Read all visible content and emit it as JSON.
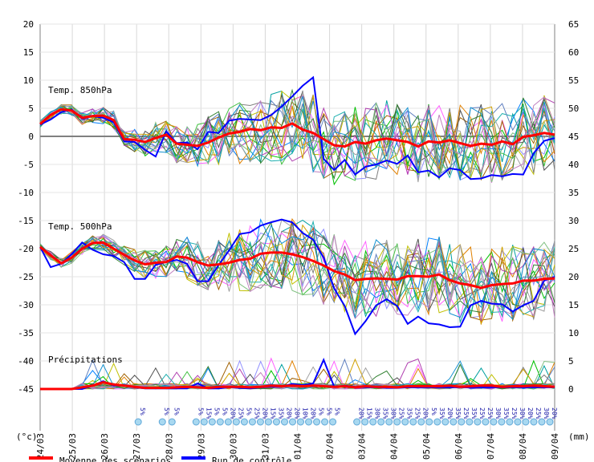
{
  "chart_data": {
    "type": "line",
    "sections": {
      "t850": {
        "label": "Temp. 850hPa"
      },
      "t500": {
        "label": "Temp. 500hPa"
      },
      "precip": {
        "label": "Précipitations"
      }
    },
    "left_axis": {
      "unit": "(°c)",
      "ticks": [
        20,
        15,
        10,
        5,
        0,
        -5,
        -10,
        -15,
        -20,
        -25,
        -30,
        -35,
        -40,
        -45
      ]
    },
    "right_axis": {
      "unit": "(mm)",
      "ticks": [
        65,
        60,
        55,
        50,
        45,
        40,
        35,
        30,
        25,
        20,
        15,
        10,
        5,
        0
      ]
    },
    "x_labels": [
      "24/03",
      "25/03",
      "26/03",
      "27/03",
      "28/03",
      "29/03",
      "30/03",
      "31/03",
      "01/04",
      "02/04",
      "03/04",
      "04/04",
      "05/04",
      "06/04",
      "07/04",
      "08/04",
      "09/04"
    ],
    "snow_probabilities": [
      {
        "day": 3.05,
        "pct": "5%"
      },
      {
        "day": 3.8,
        "pct": "5%"
      },
      {
        "day": 4.1,
        "pct": "5%"
      },
      {
        "day": 4.85,
        "pct": "5%"
      },
      {
        "day": 5.1,
        "pct": "15%"
      },
      {
        "day": 5.35,
        "pct": "5%"
      },
      {
        "day": 5.6,
        "pct": "5%"
      },
      {
        "day": 5.85,
        "pct": "20%"
      },
      {
        "day": 6.1,
        "pct": "25%"
      },
      {
        "day": 6.35,
        "pct": "5%"
      },
      {
        "day": 6.6,
        "pct": "25%"
      },
      {
        "day": 6.85,
        "pct": "20%"
      },
      {
        "day": 7.1,
        "pct": "15%"
      },
      {
        "day": 7.35,
        "pct": "35%"
      },
      {
        "day": 7.6,
        "pct": "20%"
      },
      {
        "day": 7.85,
        "pct": "20%"
      },
      {
        "day": 8.1,
        "pct": "10%"
      },
      {
        "day": 8.35,
        "pct": "20%"
      },
      {
        "day": 8.6,
        "pct": "5%"
      },
      {
        "day": 8.85,
        "pct": "5%"
      },
      {
        "day": 9.1,
        "pct": "5%"
      },
      {
        "day": 9.85,
        "pct": "20%"
      },
      {
        "day": 10.1,
        "pct": "15%"
      },
      {
        "day": 10.35,
        "pct": "30%"
      },
      {
        "day": 10.6,
        "pct": "35%"
      },
      {
        "day": 10.85,
        "pct": "30%"
      },
      {
        "day": 11.1,
        "pct": "25%"
      },
      {
        "day": 11.35,
        "pct": "35%"
      },
      {
        "day": 11.6,
        "pct": "25%"
      },
      {
        "day": 11.85,
        "pct": "20%"
      },
      {
        "day": 12.1,
        "pct": "5%"
      },
      {
        "day": 12.35,
        "pct": "35%"
      },
      {
        "day": 12.6,
        "pct": "20%"
      },
      {
        "day": 12.85,
        "pct": "35%"
      },
      {
        "day": 13.1,
        "pct": "25%"
      },
      {
        "day": 13.35,
        "pct": "35%"
      },
      {
        "day": 13.6,
        "pct": "25%"
      },
      {
        "day": 13.85,
        "pct": "25%"
      },
      {
        "day": 14.1,
        "pct": "30%"
      },
      {
        "day": 14.35,
        "pct": "35%"
      },
      {
        "day": 14.6,
        "pct": "25%"
      },
      {
        "day": 14.85,
        "pct": "30%"
      },
      {
        "day": 15.1,
        "pct": "20%"
      },
      {
        "day": 15.35,
        "pct": "25%"
      },
      {
        "day": 15.6,
        "pct": "30%"
      },
      {
        "day": 15.85,
        "pct": "20%"
      }
    ],
    "series": [
      {
        "name": "Moyenne des scénarios",
        "color": "#ff0000",
        "t850": [
          2.2,
          3.8,
          4.8,
          4.6,
          3.3,
          3.6,
          3.7,
          2.9,
          -0.5,
          -0.6,
          -1.0,
          -0.3,
          0.3,
          -1.3,
          -1.5,
          -1.7,
          -1.1,
          -0.2,
          0.5,
          0.8,
          1.3,
          1.1,
          1.6,
          1.5,
          2.3,
          1.2,
          0.6,
          -0.5,
          -1.6,
          -1.8,
          -1.0,
          -1.3,
          -0.7,
          -0.4,
          -0.7,
          -1.0,
          -1.8,
          -0.9,
          -1.1,
          -0.7,
          -1.2,
          -1.7,
          -1.3,
          -1.5,
          -0.9,
          -1.4,
          -0.1,
          0.2,
          0.6,
          0.3
        ],
        "t500": [
          -19.7,
          -21.2,
          -22.6,
          -21.6,
          -20.0,
          -19.0,
          -18.9,
          -20.0,
          -21.1,
          -22.1,
          -22.8,
          -22.5,
          -22.4,
          -21.4,
          -21.6,
          -22.4,
          -23.0,
          -22.8,
          -22.5,
          -22.0,
          -21.8,
          -20.9,
          -20.7,
          -20.7,
          -21.0,
          -21.5,
          -22.2,
          -23.0,
          -24.0,
          -24.6,
          -25.6,
          -25.4,
          -25.3,
          -25.4,
          -25.5,
          -24.9,
          -24.9,
          -25.0,
          -24.6,
          -25.6,
          -26.2,
          -26.5,
          -27.0,
          -26.5,
          -26.3,
          -26.2,
          -25.7,
          -25.7,
          -25.4,
          -25.3
        ],
        "precip": [
          0,
          0,
          0,
          0,
          0.3,
          0.6,
          1.2,
          0.8,
          0.6,
          0.4,
          0.2,
          0.2,
          0.2,
          0.3,
          0.4,
          0.3,
          0.2,
          0.4,
          0.4,
          0.4,
          0.3,
          0.4,
          0.6,
          0.5,
          0.6,
          0.5,
          0.6,
          0.5,
          0.4,
          0.5,
          0.3,
          0.5,
          0.4,
          0.4,
          0.3,
          0.5,
          0.5,
          0.5,
          0.5,
          0.6,
          0.4,
          0.5,
          0.6,
          0.6,
          0.4,
          0.5,
          0.5,
          0.6,
          0.5,
          0.4
        ]
      },
      {
        "name": "Run de contrôle",
        "color": "#0000ff",
        "t850": [
          2.1,
          3.0,
          4.3,
          4.8,
          3.1,
          3.6,
          3.3,
          2.5,
          -0.9,
          -1.0,
          -2.4,
          -3.6,
          0.9,
          -1.2,
          -1.1,
          -2.3,
          0.8,
          0.6,
          2.8,
          3.1,
          3.0,
          2.9,
          3.8,
          5.3,
          7.1,
          9.0,
          10.5,
          -4.0,
          -6.0,
          -4.2,
          -6.8,
          -5.4,
          -5.0,
          -4.3,
          -4.9,
          -3.4,
          -6.4,
          -6.1,
          -7.3,
          -5.7,
          -6.0,
          -7.6,
          -7.5,
          -6.9,
          -7.1,
          -6.7,
          -6.8,
          -3.0,
          -0.8,
          -0.3
        ],
        "t500": [
          -19.7,
          -23.3,
          -22.7,
          -21.0,
          -18.9,
          -20.2,
          -21.0,
          -21.3,
          -22.4,
          -25.4,
          -25.4,
          -22.9,
          -22.4,
          -22.0,
          -22.7,
          -25.8,
          -25.8,
          -22.9,
          -20.3,
          -17.4,
          -17.1,
          -15.9,
          -15.3,
          -14.8,
          -15.3,
          -17.2,
          -18.4,
          -21.6,
          -27.1,
          -30.2,
          -35.2,
          -32.9,
          -30.1,
          -29.0,
          -30.2,
          -33.4,
          -32.1,
          -33.3,
          -33.5,
          -34.0,
          -33.9,
          -30.1,
          -29.3,
          -29.8,
          -29.9,
          -31.2,
          -30.1,
          -29.3,
          -25.7,
          -25.0
        ],
        "precip": [
          0,
          0,
          0,
          0,
          0,
          0.6,
          1.4,
          0.6,
          0.6,
          0.3,
          0.1,
          0.1,
          0.1,
          0.1,
          0.1,
          1.0,
          0.1,
          0.1,
          0.3,
          0.2,
          0.1,
          0.3,
          0.4,
          0.4,
          0.9,
          0.7,
          1.0,
          5.2,
          0.4,
          0.6,
          0.4,
          0.3,
          0.3,
          0.2,
          0.2,
          0.3,
          0.3,
          0.3,
          0.3,
          0.3,
          0.3,
          0.3,
          0.3,
          0.3,
          0.3,
          0.3,
          0.3,
          0.3,
          0.3,
          0.3
        ]
      }
    ]
  }
}
